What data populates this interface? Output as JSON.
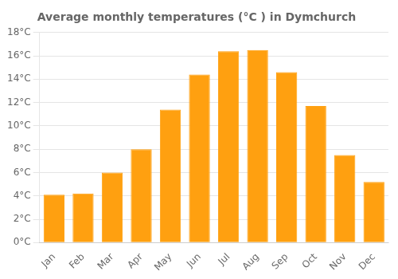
{
  "chart_data": {
    "type": "bar",
    "title": "Average monthly temperatures (°C ) in Dymchurch",
    "categories": [
      "Jan",
      "Feb",
      "Mar",
      "Apr",
      "May",
      "Jun",
      "Jul",
      "Aug",
      "Sep",
      "Oct",
      "Nov",
      "Dec"
    ],
    "values": [
      4.1,
      4.2,
      6.0,
      8.0,
      11.4,
      14.4,
      16.4,
      16.5,
      14.6,
      11.7,
      7.5,
      5.2
    ],
    "color": "#FFA010",
    "ylim": [
      0,
      18
    ],
    "yticks": [
      {
        "value": 0,
        "label": "0°C"
      },
      {
        "value": 2,
        "label": "2°C"
      },
      {
        "value": 4,
        "label": "4°C"
      },
      {
        "value": 6,
        "label": "6°C"
      },
      {
        "value": 8,
        "label": "8°C"
      },
      {
        "value": 10,
        "label": "10°C"
      },
      {
        "value": 12,
        "label": "12°C"
      },
      {
        "value": 14,
        "label": "14°C"
      },
      {
        "value": 16,
        "label": "16°C"
      },
      {
        "value": 18,
        "label": "18°C"
      }
    ],
    "grid": "y"
  }
}
